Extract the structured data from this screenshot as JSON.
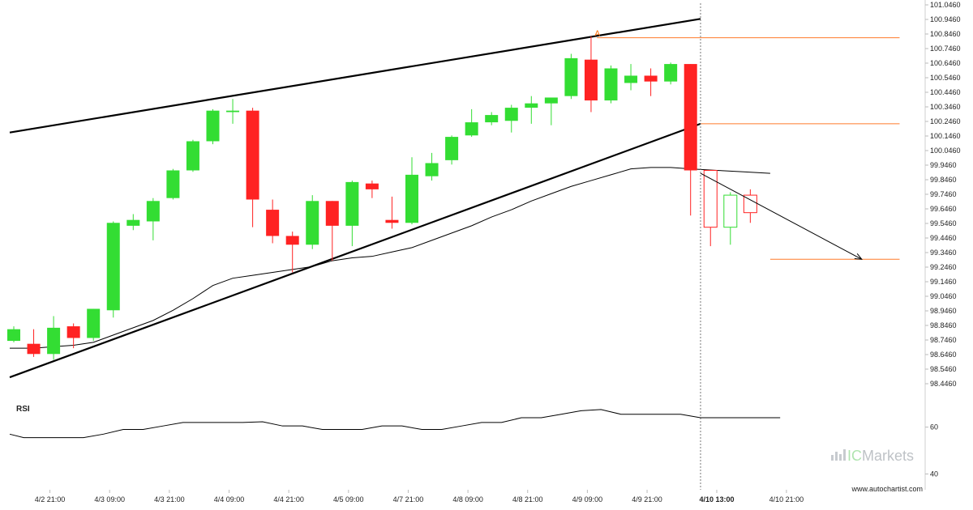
{
  "chart_data": {
    "type": "candlestick",
    "y_axis": {
      "ticks": [
        "101.0460",
        "100.9460",
        "100.8460",
        "100.7460",
        "100.6460",
        "100.5460",
        "100.4460",
        "100.3460",
        "100.2460",
        "100.1460",
        "100.0460",
        "99.9460",
        "99.8460",
        "99.7460",
        "99.6460",
        "99.5460",
        "99.4460",
        "99.3460",
        "99.2460",
        "99.1460",
        "99.0460",
        "98.9460",
        "98.8460",
        "98.7460",
        "98.6460",
        "98.5460",
        "98.4460"
      ],
      "range": [
        98.4,
        101.06
      ]
    },
    "x_axis": {
      "ticks": [
        {
          "label": "4/2 21:00",
          "bar": 1,
          "highlight": false
        },
        {
          "label": "4/3 09:00",
          "bar": 4,
          "highlight": false
        },
        {
          "label": "4/3 21:00",
          "bar": 7,
          "highlight": false
        },
        {
          "label": "4/4 09:00",
          "bar": 10,
          "highlight": false
        },
        {
          "label": "4/4 21:00",
          "bar": 13,
          "highlight": false
        },
        {
          "label": "4/5 09:00",
          "bar": 16,
          "highlight": false
        },
        {
          "label": "4/7 21:00",
          "bar": 19,
          "highlight": false
        },
        {
          "label": "4/8 09:00",
          "bar": 22,
          "highlight": false
        },
        {
          "label": "4/8 21:00",
          "bar": 25,
          "highlight": false
        },
        {
          "label": "4/9 09:00",
          "bar": 28,
          "highlight": false
        },
        {
          "label": "4/9 21:00",
          "bar": 31,
          "highlight": false
        },
        {
          "label": "4/10 13:00",
          "bar": 34.5,
          "highlight": true
        },
        {
          "label": "4/10 21:00",
          "bar": 38,
          "highlight": false
        }
      ]
    },
    "candles": [
      {
        "o": 98.74,
        "h": 98.84,
        "l": 98.73,
        "c": 98.82
      },
      {
        "o": 98.72,
        "h": 98.82,
        "l": 98.63,
        "c": 98.65
      },
      {
        "o": 98.65,
        "h": 98.91,
        "l": 98.61,
        "c": 98.83
      },
      {
        "o": 98.84,
        "h": 98.86,
        "l": 98.69,
        "c": 98.76
      },
      {
        "o": 98.76,
        "h": 98.96,
        "l": 98.74,
        "c": 98.96
      },
      {
        "o": 98.95,
        "h": 99.56,
        "l": 98.9,
        "c": 99.55
      },
      {
        "o": 99.53,
        "h": 99.61,
        "l": 99.5,
        "c": 99.57
      },
      {
        "o": 99.56,
        "h": 99.72,
        "l": 99.43,
        "c": 99.7
      },
      {
        "o": 99.72,
        "h": 99.92,
        "l": 99.71,
        "c": 99.91
      },
      {
        "o": 99.91,
        "h": 100.12,
        "l": 99.9,
        "c": 100.11
      },
      {
        "o": 100.11,
        "h": 100.33,
        "l": 100.09,
        "c": 100.32
      },
      {
        "o": 100.31,
        "h": 100.4,
        "l": 100.23,
        "c": 100.32
      },
      {
        "o": 100.32,
        "h": 100.34,
        "l": 99.52,
        "c": 99.71
      },
      {
        "o": 99.64,
        "h": 99.71,
        "l": 99.41,
        "c": 99.46
      },
      {
        "o": 99.46,
        "h": 99.49,
        "l": 99.21,
        "c": 99.4
      },
      {
        "o": 99.4,
        "h": 99.74,
        "l": 99.37,
        "c": 99.7
      },
      {
        "o": 99.7,
        "h": 99.7,
        "l": 99.29,
        "c": 99.53
      },
      {
        "o": 99.53,
        "h": 99.84,
        "l": 99.39,
        "c": 99.83
      },
      {
        "o": 99.82,
        "h": 99.84,
        "l": 99.72,
        "c": 99.78
      },
      {
        "o": 99.57,
        "h": 99.73,
        "l": 99.51,
        "c": 99.55
      },
      {
        "o": 99.55,
        "h": 100.0,
        "l": 99.54,
        "c": 99.88
      },
      {
        "o": 99.87,
        "h": 100.03,
        "l": 99.84,
        "c": 99.96
      },
      {
        "o": 99.98,
        "h": 100.15,
        "l": 99.95,
        "c": 100.14
      },
      {
        "o": 100.15,
        "h": 100.33,
        "l": 100.14,
        "c": 100.24
      },
      {
        "o": 100.24,
        "h": 100.31,
        "l": 100.22,
        "c": 100.29
      },
      {
        "o": 100.25,
        "h": 100.36,
        "l": 100.17,
        "c": 100.34
      },
      {
        "o": 100.34,
        "h": 100.42,
        "l": 100.23,
        "c": 100.37
      },
      {
        "o": 100.37,
        "h": 100.41,
        "l": 100.22,
        "c": 100.41
      },
      {
        "o": 100.42,
        "h": 100.71,
        "l": 100.4,
        "c": 100.68
      },
      {
        "o": 100.67,
        "h": 100.83,
        "l": 100.31,
        "c": 100.39
      },
      {
        "o": 100.39,
        "h": 100.63,
        "l": 100.37,
        "c": 100.61
      },
      {
        "o": 100.51,
        "h": 100.64,
        "l": 100.46,
        "c": 100.56
      },
      {
        "o": 100.56,
        "h": 100.61,
        "l": 100.42,
        "c": 100.52
      },
      {
        "o": 100.52,
        "h": 100.65,
        "l": 100.5,
        "c": 100.64
      },
      {
        "o": 100.64,
        "h": 100.64,
        "l": 99.6,
        "c": 99.91
      }
    ],
    "forecast_candles": [
      {
        "o": 99.91,
        "h": 99.91,
        "l": 99.39,
        "c": 99.52
      },
      {
        "o": 99.52,
        "h": 99.76,
        "l": 99.4,
        "c": 99.74
      },
      {
        "o": 99.74,
        "h": 99.78,
        "l": 99.55,
        "c": 99.62
      }
    ],
    "moving_average": [
      98.69,
      98.69,
      98.7,
      98.71,
      98.73,
      98.78,
      98.83,
      98.88,
      98.95,
      99.03,
      99.12,
      99.17,
      99.19,
      99.21,
      99.23,
      99.25,
      99.29,
      99.31,
      99.32,
      99.35,
      99.38,
      99.43,
      99.48,
      99.53,
      99.59,
      99.64,
      99.7,
      99.75,
      99.8,
      99.84,
      99.88,
      99.92,
      99.93,
      99.93,
      99.92
    ],
    "ma_extension": [
      99.92,
      99.91,
      99.9,
      99.89
    ],
    "channel": {
      "upper": {
        "from": {
          "bar": 0,
          "price": 100.17
        },
        "to": {
          "bar": 34.5,
          "price": 100.95
        }
      },
      "lower": {
        "from": {
          "bar": 0,
          "price": 98.49
        },
        "to": {
          "bar": 34.5,
          "price": 100.23
        }
      }
    },
    "levels": [
      {
        "price": 100.82,
        "from_bar": 29.3,
        "to_bar": 44.5
      },
      {
        "price": 100.23,
        "from_bar": 34.5,
        "to_bar": 44.5
      },
      {
        "price": 99.3,
        "from_bar": 38,
        "to_bar": 44.5
      }
    ],
    "forecast_arrow": {
      "from": {
        "bar": 34.5,
        "price": 99.89
      },
      "to": {
        "bar": 42.6,
        "price": 99.3
      }
    },
    "marker": {
      "label": "A",
      "bar": 29.3,
      "price": 100.82
    },
    "rsi": {
      "label": "RSI",
      "ticks": [
        "60",
        "40"
      ],
      "values": [
        57.0,
        55.5,
        55.5,
        55.5,
        55.5,
        57.0,
        59.0,
        59.0,
        60.5,
        62.0,
        62.0,
        62.0,
        62.0,
        62.3,
        60.5,
        60.5,
        59.0,
        59.0,
        59.0,
        60.5,
        60.5,
        59.0,
        59.0,
        60.5,
        62.0,
        62.0,
        64.0,
        64.0,
        65.5,
        67.0,
        67.5,
        65.5,
        65.5,
        65.5,
        65.5,
        64.0,
        64.0,
        64.0,
        64.0,
        64.0
      ],
      "range": [
        35.0,
        73.0
      ]
    }
  },
  "watermark": {
    "brand_light": "IC",
    "brand_dark": "Markets"
  },
  "footer": {
    "site": "www.autochartist.com"
  }
}
